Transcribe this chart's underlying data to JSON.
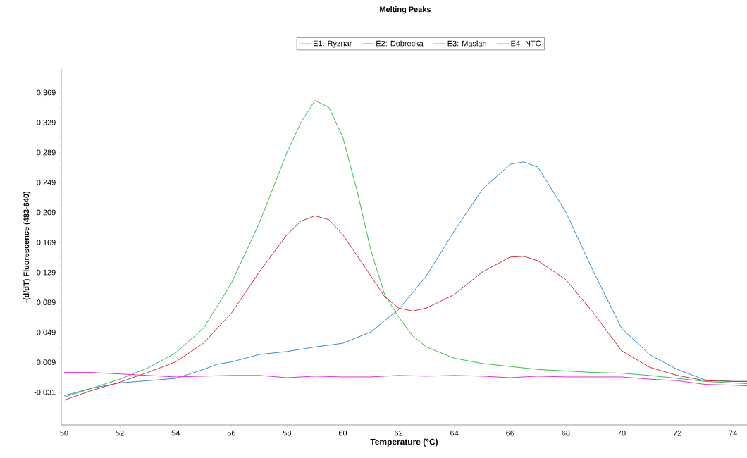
{
  "chart_data": {
    "type": "line",
    "title": "Melting Peaks",
    "xlabel": "Temperature (°C)",
    "ylabel": "-(d/dT) Fluorescence (483-640)",
    "xlim": [
      49.9,
      74.5
    ],
    "ylim": [
      -0.074,
      0.401
    ],
    "xticks": [
      50,
      52,
      54,
      56,
      58,
      60,
      62,
      64,
      66,
      68,
      70,
      72,
      74
    ],
    "yticks": [
      {
        "value": -0.031,
        "label": "-0,031"
      },
      {
        "value": 0.009,
        "label": "0,009"
      },
      {
        "value": 0.049,
        "label": "0,049"
      },
      {
        "value": 0.089,
        "label": "0,089"
      },
      {
        "value": 0.129,
        "label": "0,129"
      },
      {
        "value": 0.169,
        "label": "0,169"
      },
      {
        "value": 0.209,
        "label": "0,209"
      },
      {
        "value": 0.249,
        "label": "0,249"
      },
      {
        "value": 0.289,
        "label": "0,289"
      },
      {
        "value": 0.329,
        "label": "0,329"
      },
      {
        "value": 0.369,
        "label": "0,369"
      }
    ],
    "legend": "top",
    "grid": false,
    "marker": "none",
    "line_style": "solid",
    "series": [
      {
        "name": "E1: Ryznar",
        "color": "#2a8fd0",
        "x": [
          50,
          51,
          52,
          53,
          54,
          55,
          55.5,
          56,
          57,
          58,
          59,
          60,
          61,
          62,
          63,
          64,
          65,
          66,
          66.5,
          67,
          68,
          69,
          70,
          71,
          72,
          73,
          74,
          74.5
        ],
        "values": [
          -0.035,
          -0.025,
          -0.018,
          -0.015,
          -0.012,
          0.0,
          0.007,
          0.01,
          0.02,
          0.024,
          0.03,
          0.035,
          0.05,
          0.08,
          0.125,
          0.185,
          0.24,
          0.274,
          0.277,
          0.27,
          0.21,
          0.13,
          0.055,
          0.02,
          0.0,
          -0.014,
          -0.016,
          -0.016
        ]
      },
      {
        "name": "E2: Dobrecka",
        "color": "#d42a3a",
        "x": [
          50,
          51,
          52,
          53,
          54,
          55,
          56,
          57,
          58,
          58.5,
          59,
          59.5,
          60,
          61,
          61.5,
          62,
          62.5,
          63,
          64,
          65,
          66,
          66.5,
          67,
          68,
          69,
          70,
          71,
          72,
          73,
          74,
          74.5
        ],
        "values": [
          -0.041,
          -0.028,
          -0.017,
          -0.004,
          0.01,
          0.035,
          0.075,
          0.13,
          0.18,
          0.198,
          0.205,
          0.2,
          0.18,
          0.125,
          0.097,
          0.082,
          0.078,
          0.082,
          0.1,
          0.13,
          0.15,
          0.151,
          0.145,
          0.12,
          0.075,
          0.025,
          0.003,
          -0.008,
          -0.015,
          -0.016,
          -0.016
        ]
      },
      {
        "name": "E3: Maslan",
        "color": "#2ec04a",
        "x": [
          50,
          51,
          52,
          53,
          54,
          55,
          56,
          57,
          58,
          58.5,
          59,
          59.5,
          60,
          60.5,
          61,
          61.5,
          62,
          62.5,
          63,
          64,
          65,
          66,
          67,
          68,
          69,
          70,
          71,
          72,
          73,
          74,
          74.5
        ],
        "values": [
          -0.037,
          -0.025,
          -0.013,
          0.002,
          0.022,
          0.055,
          0.115,
          0.195,
          0.29,
          0.33,
          0.359,
          0.35,
          0.31,
          0.24,
          0.16,
          0.1,
          0.07,
          0.045,
          0.03,
          0.015,
          0.008,
          0.004,
          0.0,
          -0.002,
          -0.004,
          -0.005,
          -0.008,
          -0.012,
          -0.016,
          -0.018,
          -0.019
        ]
      },
      {
        "name": "E4: NTC",
        "color": "#e030e0",
        "x": [
          50,
          51,
          52,
          53,
          54,
          55,
          56,
          57,
          58,
          59,
          60,
          61,
          62,
          63,
          64,
          65,
          66,
          67,
          68,
          69,
          70,
          71,
          72,
          73,
          74,
          74.5
        ],
        "values": [
          -0.004,
          -0.004,
          -0.006,
          -0.008,
          -0.01,
          -0.009,
          -0.008,
          -0.008,
          -0.011,
          -0.009,
          -0.01,
          -0.01,
          -0.008,
          -0.009,
          -0.008,
          -0.009,
          -0.011,
          -0.009,
          -0.01,
          -0.01,
          -0.01,
          -0.013,
          -0.015,
          -0.02,
          -0.021,
          -0.022
        ]
      }
    ]
  }
}
